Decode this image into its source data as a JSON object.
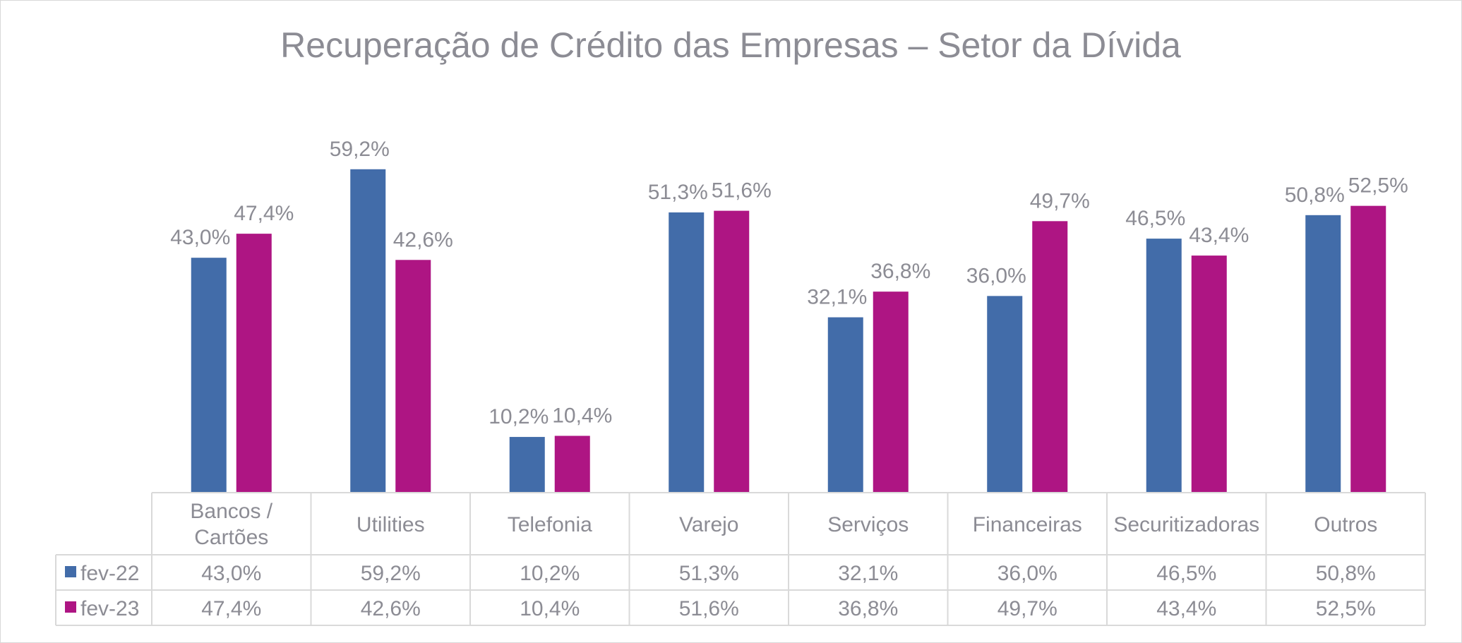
{
  "chart_data": {
    "type": "bar",
    "title": "Recuperação de Crédito das Empresas – Setor da Dívida",
    "categories": [
      "Bancos / Cartões",
      "Utilities",
      "Telefonia",
      "Varejo",
      "Serviços",
      "Financeiras",
      "Securitizadoras",
      "Outros"
    ],
    "series": [
      {
        "name": "fev-22",
        "color": "#426ca9",
        "values": [
          43.0,
          59.2,
          10.2,
          51.3,
          32.1,
          36.0,
          46.5,
          50.8
        ],
        "labels": [
          "43,0%",
          "59,2%",
          "10,2%",
          "51,3%",
          "32,1%",
          "36,0%",
          "46,5%",
          "50,8%"
        ]
      },
      {
        "name": "fev-23",
        "color": "#ae1583",
        "values": [
          47.4,
          42.6,
          10.4,
          51.6,
          36.8,
          49.7,
          43.4,
          52.5
        ],
        "labels": [
          "47,4%",
          "42,6%",
          "10,4%",
          "51,6%",
          "36,8%",
          "49,7%",
          "43,4%",
          "52,5%"
        ]
      }
    ],
    "ylim": [
      0,
      60
    ],
    "data_labels": true,
    "data_table": true,
    "legend": "data-table",
    "grid": false
  }
}
